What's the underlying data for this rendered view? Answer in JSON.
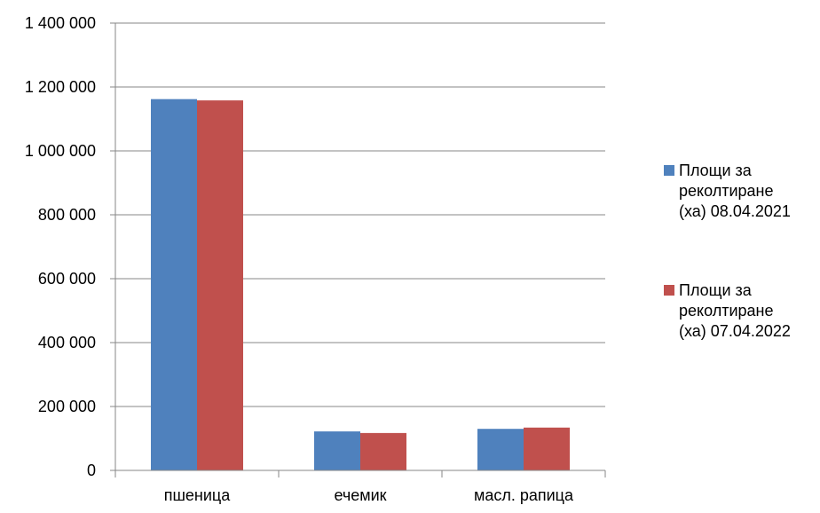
{
  "chart_data": {
    "type": "bar",
    "title": "",
    "xlabel": "",
    "ylabel": "",
    "categories": [
      "пшеница",
      "ечемик",
      "масл. рапица"
    ],
    "series": [
      {
        "name": "Площи за реколтиране (ха) 08.04.2021",
        "name_lines": [
          "Площи за",
          "реколтиране",
          "(ха) 08.04.2021"
        ],
        "color": "#4f81bd",
        "values": [
          1162000,
          122000,
          130000
        ]
      },
      {
        "name": "Площи за реколтиране (ха) 07.04.2022",
        "name_lines": [
          "Площи за",
          "реколтиране",
          "(ха) 07.04.2022"
        ],
        "color": "#c0504d",
        "values": [
          1158000,
          117000,
          134000
        ]
      }
    ],
    "ylim": [
      0,
      1400000
    ],
    "yticks": [
      0,
      200000,
      400000,
      600000,
      800000,
      1000000,
      1200000,
      1400000
    ],
    "ytick_labels": [
      "0",
      "200 000",
      "400 000",
      "600 000",
      "800 000",
      "1 000 000",
      "1 200 000",
      "1 400 000"
    ],
    "grid": true,
    "legend_position": "right"
  }
}
